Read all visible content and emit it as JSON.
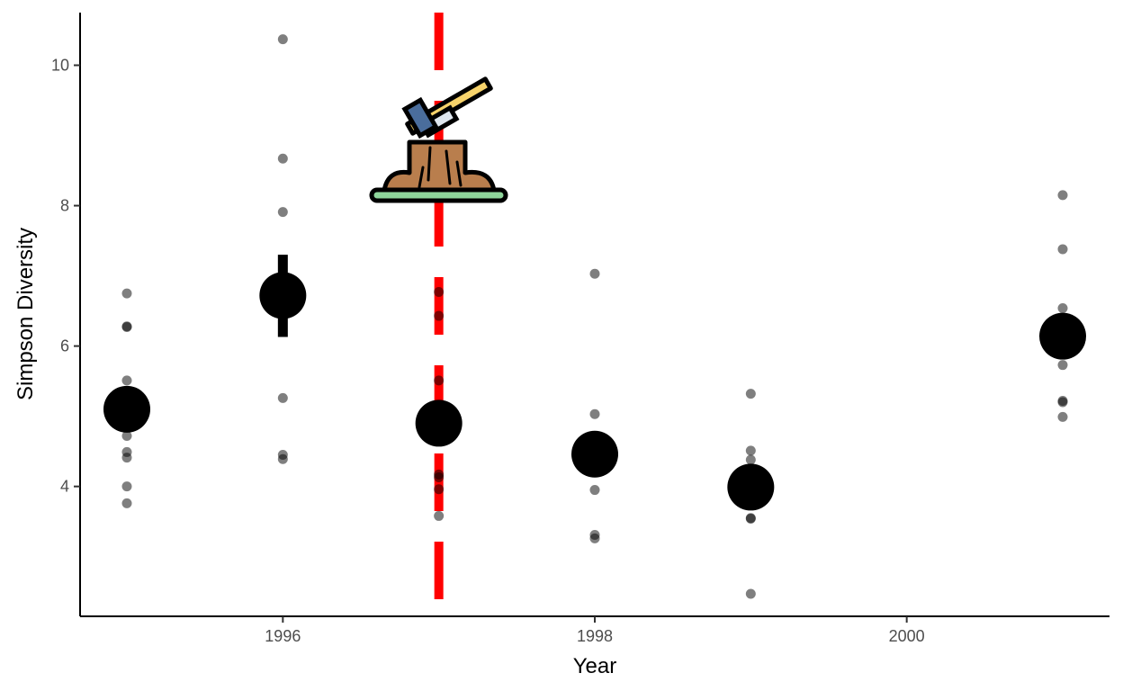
{
  "chart_data": {
    "type": "scatter",
    "title": "",
    "xlabel": "Year",
    "ylabel": "Simpson Diversity",
    "xlim": [
      1994.7,
      2001.3
    ],
    "ylim": [
      2.15,
      10.75
    ],
    "x_ticks": [
      1996,
      1998,
      2000
    ],
    "y_ticks": [
      4,
      6,
      8,
      10
    ],
    "grid": false,
    "legend": "none",
    "series": [
      {
        "kind": "raw",
        "color": "#000000",
        "opacity": 0.5,
        "points": [
          [
            1995,
            6.75
          ],
          [
            1995,
            6.28
          ],
          [
            1995,
            6.27
          ],
          [
            1995,
            5.51
          ],
          [
            1995,
            4.72
          ],
          [
            1995,
            4.49
          ],
          [
            1995,
            4.41
          ],
          [
            1995,
            4.0
          ],
          [
            1995,
            3.76
          ],
          [
            1996,
            10.37
          ],
          [
            1996,
            8.67
          ],
          [
            1996,
            7.91
          ],
          [
            1996,
            5.26
          ],
          [
            1996,
            4.45
          ],
          [
            1996,
            4.39
          ],
          [
            1997,
            6.77
          ],
          [
            1997,
            6.43
          ],
          [
            1997,
            5.51
          ],
          [
            1997,
            4.17
          ],
          [
            1997,
            4.13
          ],
          [
            1997,
            3.96
          ],
          [
            1997,
            3.58
          ],
          [
            1998,
            7.03
          ],
          [
            1998,
            5.03
          ],
          [
            1998,
            3.95
          ],
          [
            1998,
            3.31
          ],
          [
            1998,
            3.26
          ],
          [
            1999,
            5.32
          ],
          [
            1999,
            4.51
          ],
          [
            1999,
            4.38
          ],
          [
            1999,
            3.55
          ],
          [
            1999,
            3.54
          ],
          [
            1999,
            2.47
          ],
          [
            2001,
            8.15
          ],
          [
            2001,
            7.38
          ],
          [
            2001,
            6.54
          ],
          [
            2001,
            5.73
          ],
          [
            2001,
            5.22
          ],
          [
            2001,
            5.2
          ],
          [
            2001,
            4.99
          ]
        ]
      },
      {
        "kind": "mean",
        "color": "#000000",
        "points": [
          {
            "x": 1995,
            "y": 5.1,
            "lower": null,
            "upper": null
          },
          {
            "x": 1996,
            "y": 6.72,
            "lower": 6.13,
            "upper": 7.3
          },
          {
            "x": 1997,
            "y": 4.9,
            "lower": null,
            "upper": null
          },
          {
            "x": 1998,
            "y": 4.46,
            "lower": null,
            "upper": null
          },
          {
            "x": 1999,
            "y": 3.99,
            "lower": null,
            "upper": null
          },
          {
            "x": 2001,
            "y": 6.14,
            "lower": null,
            "upper": null
          }
        ]
      }
    ],
    "annotations": [
      {
        "type": "vline",
        "x": 1997,
        "color": "#ff0000",
        "style": "dashed"
      },
      {
        "type": "icon",
        "name": "axe-in-tree-stump-icon",
        "x": 1997,
        "y": 9.1
      }
    ]
  }
}
